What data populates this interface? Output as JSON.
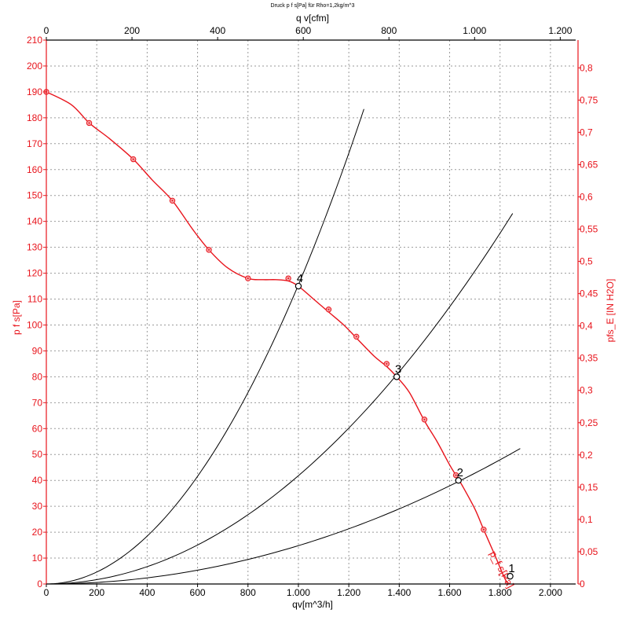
{
  "chart_data": {
    "type": "line",
    "title": "Druck p f s[Pa] für Rho=1,2kg/m^3",
    "xlabel": "qv[m^3/h]",
    "x2label": "q v[cfm]",
    "ylabel": "p f s[Pa]",
    "y2label": "pfs_E [IN H2O]",
    "xlim": [
      0,
      2100
    ],
    "ylim": [
      0,
      210
    ],
    "x2lim": [
      0,
      1236
    ],
    "y2lim": [
      0,
      0.843
    ],
    "grid": true,
    "xticks": [
      {
        "v": 0,
        "label": "0"
      },
      {
        "v": 200,
        "label": "200"
      },
      {
        "v": 400,
        "label": "400"
      },
      {
        "v": 600,
        "label": "600"
      },
      {
        "v": 800,
        "label": "800"
      },
      {
        "v": 1000,
        "label": "1.000"
      },
      {
        "v": 1200,
        "label": "1.200"
      },
      {
        "v": 1400,
        "label": "1.400"
      },
      {
        "v": 1600,
        "label": "1.600"
      },
      {
        "v": 1800,
        "label": "1.800"
      },
      {
        "v": 2000,
        "label": "2.000"
      }
    ],
    "x2ticks": [
      {
        "v": 0,
        "label": "0"
      },
      {
        "v": 200,
        "label": "200"
      },
      {
        "v": 400,
        "label": "400"
      },
      {
        "v": 600,
        "label": "600"
      },
      {
        "v": 800,
        "label": "800"
      },
      {
        "v": 1000,
        "label": "1.000"
      },
      {
        "v": 1200,
        "label": "1.200"
      }
    ],
    "yticks": [
      {
        "v": 0,
        "label": "0"
      },
      {
        "v": 10,
        "label": "10"
      },
      {
        "v": 20,
        "label": "20"
      },
      {
        "v": 30,
        "label": "30"
      },
      {
        "v": 40,
        "label": "40"
      },
      {
        "v": 50,
        "label": "50"
      },
      {
        "v": 60,
        "label": "60"
      },
      {
        "v": 70,
        "label": "70"
      },
      {
        "v": 80,
        "label": "80"
      },
      {
        "v": 90,
        "label": "90"
      },
      {
        "v": 100,
        "label": "100"
      },
      {
        "v": 110,
        "label": "110"
      },
      {
        "v": 120,
        "label": "120"
      },
      {
        "v": 130,
        "label": "130"
      },
      {
        "v": 140,
        "label": "140"
      },
      {
        "v": 150,
        "label": "150"
      },
      {
        "v": 160,
        "label": "160"
      },
      {
        "v": 170,
        "label": "170"
      },
      {
        "v": 180,
        "label": "180"
      },
      {
        "v": 190,
        "label": "190"
      },
      {
        "v": 200,
        "label": "200"
      },
      {
        "v": 210,
        "label": "210"
      }
    ],
    "y2ticks": [
      {
        "v": 0,
        "label": "0"
      },
      {
        "v": 0.05,
        "label": "0,05"
      },
      {
        "v": 0.1,
        "label": "0,1"
      },
      {
        "v": 0.15,
        "label": "0,15"
      },
      {
        "v": 0.2,
        "label": "0,2"
      },
      {
        "v": 0.25,
        "label": "0,25"
      },
      {
        "v": 0.3,
        "label": "0,3"
      },
      {
        "v": 0.35,
        "label": "0,35"
      },
      {
        "v": 0.4,
        "label": "0,4"
      },
      {
        "v": 0.45,
        "label": "0,45"
      },
      {
        "v": 0.5,
        "label": "0,5"
      },
      {
        "v": 0.55,
        "label": "0,55"
      },
      {
        "v": 0.6,
        "label": "0,6"
      },
      {
        "v": 0.65,
        "label": "0,65"
      },
      {
        "v": 0.7,
        "label": "0,7"
      },
      {
        "v": 0.75,
        "label": "0,75"
      },
      {
        "v": 0.8,
        "label": "0,8"
      }
    ],
    "fan_curve": {
      "name": "p_f s[Pa]",
      "color": "#e8141c",
      "points": [
        [
          0,
          190
        ],
        [
          100,
          185
        ],
        [
          170,
          178
        ],
        [
          250,
          172
        ],
        [
          345,
          164
        ],
        [
          420,
          156
        ],
        [
          500,
          148
        ],
        [
          580,
          137
        ],
        [
          645,
          129
        ],
        [
          720,
          122
        ],
        [
          800,
          118
        ],
        [
          860,
          117.5
        ],
        [
          910,
          117.5
        ],
        [
          960,
          117
        ],
        [
          1000,
          115
        ],
        [
          1060,
          110
        ],
        [
          1120,
          105
        ],
        [
          1180,
          100
        ],
        [
          1230,
          95
        ],
        [
          1300,
          88
        ],
        [
          1350,
          84
        ],
        [
          1390,
          80
        ],
        [
          1440,
          74
        ],
        [
          1500,
          63
        ],
        [
          1550,
          55
        ],
        [
          1600,
          46
        ],
        [
          1625,
          42
        ],
        [
          1650,
          38
        ],
        [
          1700,
          29
        ],
        [
          1735,
          21
        ],
        [
          1780,
          11
        ],
        [
          1810,
          4
        ],
        [
          1830,
          0
        ]
      ],
      "markers": [
        [
          0,
          190
        ],
        [
          170,
          178
        ],
        [
          345,
          164
        ],
        [
          500,
          148
        ],
        [
          645,
          129
        ],
        [
          800,
          118
        ],
        [
          960,
          118
        ],
        [
          1120,
          106
        ],
        [
          1230,
          95.5
        ],
        [
          1350,
          85
        ],
        [
          1500,
          63.5
        ],
        [
          1625,
          42
        ],
        [
          1735,
          21
        ]
      ]
    },
    "system_curves": [
      {
        "k": 0.0001155,
        "x_max": 1260
      },
      {
        "k": 4.18e-05,
        "x_max": 1850
      },
      {
        "k": 1.48e-05,
        "x_max": 1880
      }
    ],
    "operating_points": [
      {
        "label": "1",
        "x": 1840,
        "y": 3
      },
      {
        "label": "2",
        "x": 1635,
        "y": 40
      },
      {
        "label": "3",
        "x": 1390,
        "y": 80
      },
      {
        "label": "4",
        "x": 1000,
        "y": 115
      }
    ],
    "colors": {
      "axis_red": "#e8141c",
      "axis_black": "#000000",
      "grid": "#9a9a9a"
    }
  }
}
